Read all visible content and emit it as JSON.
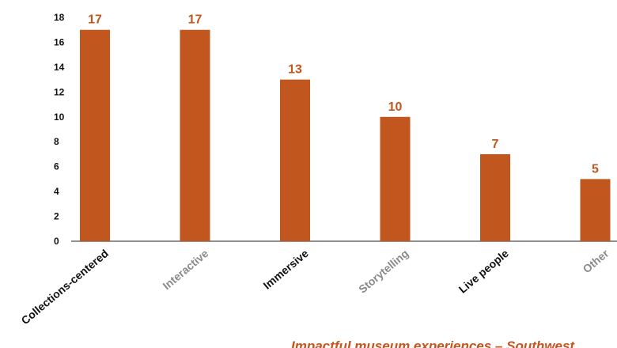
{
  "chart_data": {
    "type": "bar",
    "categories": [
      "Collections-centered",
      "Interactive",
      "Immersive",
      "Storytelling",
      "Live people",
      "Other"
    ],
    "values": [
      17,
      17,
      13,
      10,
      7,
      5
    ],
    "ylim": [
      0,
      18
    ],
    "yticks": [
      0,
      2,
      4,
      6,
      8,
      10,
      12,
      14,
      16,
      18
    ],
    "grid": false,
    "legend": "none",
    "data_labels": true,
    "category_label_colors": [
      "#111111",
      "#8a8a8a",
      "#111111",
      "#8a8a8a",
      "#111111",
      "#8a8a8a"
    ],
    "bar_color": "#c1561e",
    "label_color": "#c1561e"
  },
  "footer": {
    "text": "Impactful museum experiences – Southwest",
    "color": "#c1561e"
  }
}
